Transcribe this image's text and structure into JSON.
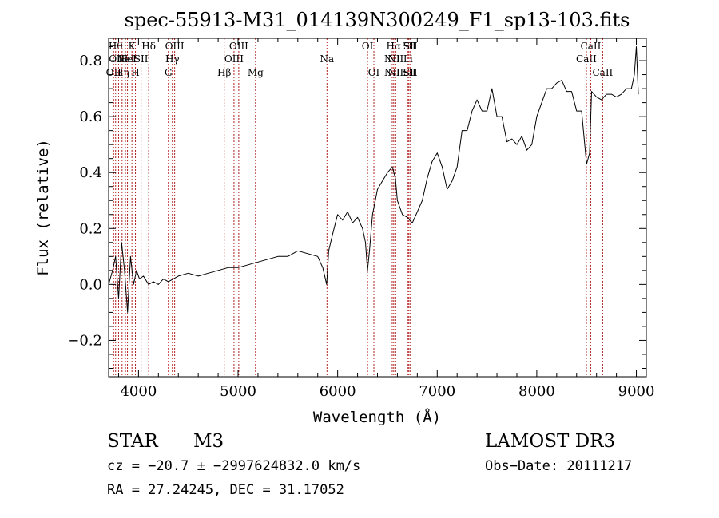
{
  "chart_data": {
    "type": "line",
    "title": "spec-55913-M31_014139N300249_F1_sp13-103.fits",
    "xlabel": "Wavelength (Å)",
    "ylabel": "Flux (relative)",
    "xlim": [
      3700,
      9100
    ],
    "ylim": [
      -0.33,
      0.88
    ],
    "x_ticks": [
      4000,
      5000,
      6000,
      7000,
      8000,
      9000
    ],
    "y_ticks": [
      -0.2,
      0.0,
      0.2,
      0.4,
      0.6,
      0.8
    ],
    "grid": false,
    "line_color": "#000000",
    "marker_color": "#b22222",
    "series": [
      {
        "x": [
          3700,
          3740,
          3770,
          3800,
          3830,
          3860,
          3890,
          3920,
          3950,
          3980,
          4010,
          4050,
          4100,
          4150,
          4200,
          4250,
          4300,
          4400,
          4500,
          4600,
          4700,
          4800,
          4900,
          5000,
          5100,
          5200,
          5300,
          5400,
          5500,
          5600,
          5700,
          5800,
          5850,
          5890,
          5910,
          5950,
          6000,
          6050,
          6100,
          6150,
          6200,
          6250,
          6280,
          6300,
          6320,
          6350,
          6400,
          6450,
          6500,
          6550,
          6580,
          6600,
          6650,
          6700,
          6750,
          6800,
          6850,
          6900,
          6950,
          7000,
          7050,
          7100,
          7150,
          7200,
          7250,
          7300,
          7350,
          7400,
          7450,
          7500,
          7550,
          7600,
          7650,
          7700,
          7750,
          7800,
          7850,
          7900,
          7950,
          8000,
          8050,
          8100,
          8150,
          8200,
          8250,
          8300,
          8350,
          8400,
          8450,
          8500,
          8530,
          8550,
          8600,
          8650,
          8700,
          8750,
          8800,
          8850,
          8900,
          8950,
          8980,
          9000,
          9020
        ],
        "values": [
          0.0,
          0.05,
          0.1,
          -0.05,
          0.15,
          0.05,
          -0.1,
          0.1,
          0.0,
          0.05,
          0.02,
          0.03,
          0.0,
          0.01,
          0.0,
          0.02,
          0.01,
          0.03,
          0.04,
          0.03,
          0.04,
          0.05,
          0.06,
          0.06,
          0.07,
          0.08,
          0.09,
          0.1,
          0.1,
          0.12,
          0.11,
          0.1,
          0.06,
          0.0,
          0.12,
          0.18,
          0.25,
          0.23,
          0.26,
          0.22,
          0.24,
          0.2,
          0.15,
          0.05,
          0.12,
          0.25,
          0.34,
          0.37,
          0.4,
          0.42,
          0.38,
          0.3,
          0.25,
          0.24,
          0.22,
          0.26,
          0.3,
          0.38,
          0.44,
          0.47,
          0.42,
          0.34,
          0.37,
          0.42,
          0.55,
          0.55,
          0.62,
          0.66,
          0.62,
          0.62,
          0.7,
          0.6,
          0.6,
          0.51,
          0.52,
          0.5,
          0.53,
          0.48,
          0.5,
          0.6,
          0.65,
          0.7,
          0.7,
          0.72,
          0.73,
          0.69,
          0.69,
          0.62,
          0.62,
          0.43,
          0.47,
          0.69,
          0.67,
          0.66,
          0.68,
          0.68,
          0.67,
          0.68,
          0.7,
          0.7,
          0.75,
          0.85,
          0.68
        ]
      }
    ],
    "lines": [
      {
        "x": 3750,
        "rows": [
          3
        ],
        "label": "OII"
      },
      {
        "x": 3770,
        "rows": [
          1
        ],
        "label": "Hθ"
      },
      {
        "x": 3800,
        "rows": [
          2
        ],
        "label": "OIII"
      },
      {
        "x": 3835,
        "rows": [
          3
        ],
        "label": "Hη"
      },
      {
        "x": 3869,
        "rows": [
          2
        ],
        "label": "NeI"
      },
      {
        "x": 3889,
        "rows": [
          2
        ],
        "label": "HeI"
      },
      {
        "x": 3934,
        "rows": [
          1
        ],
        "label": "K"
      },
      {
        "x": 3969,
        "rows": [
          3
        ],
        "label": "H"
      },
      {
        "x": 4026,
        "rows": [
          2
        ],
        "label": "SII"
      },
      {
        "x": 4102,
        "rows": [
          1
        ],
        "label": "Hδ"
      },
      {
        "x": 4300,
        "rows": [
          3
        ],
        "label": "G"
      },
      {
        "x": 4340,
        "rows": [
          2
        ],
        "label": "Hγ"
      },
      {
        "x": 4363,
        "rows": [
          1
        ],
        "label": "OIII"
      },
      {
        "x": 4861,
        "rows": [
          3
        ],
        "label": "Hβ"
      },
      {
        "x": 4959,
        "rows": [
          2
        ],
        "label": "OIII"
      },
      {
        "x": 5007,
        "rows": [
          1
        ],
        "label": "OIII"
      },
      {
        "x": 5175,
        "rows": [
          3
        ],
        "label": "Mg"
      },
      {
        "x": 5893,
        "rows": [
          2
        ],
        "label": "Na"
      },
      {
        "x": 6300,
        "rows": [
          1
        ],
        "label": "OI"
      },
      {
        "x": 6364,
        "rows": [
          3
        ],
        "label": "OI"
      },
      {
        "x": 6548,
        "rows": [
          2,
          3
        ],
        "label": "NII"
      },
      {
        "x": 6563,
        "rows": [
          1
        ],
        "label": "Hα"
      },
      {
        "x": 6583,
        "rows": [
          2,
          3
        ],
        "label": "NII"
      },
      {
        "x": 6707,
        "rows": [
          2
        ],
        "label": "Li"
      },
      {
        "x": 6716,
        "rows": [
          1,
          3
        ],
        "label": "SII"
      },
      {
        "x": 6731,
        "rows": [
          1,
          3
        ],
        "label": "SII"
      },
      {
        "x": 8498,
        "rows": [
          2
        ],
        "label": "CaII"
      },
      {
        "x": 8542,
        "rows": [
          1
        ],
        "label": "CaII"
      },
      {
        "x": 8662,
        "rows": [
          3
        ],
        "label": "CaII"
      }
    ]
  },
  "info": {
    "object_class": "STAR",
    "subclass": "M3",
    "survey": "LAMOST DR3",
    "cz_line": "cz = −20.7 ± −2997624832.0 km/s",
    "obs_date_line": "Obs−Date: 20111217",
    "coords_line": "RA =  27.24245, DEC =  31.17052"
  }
}
